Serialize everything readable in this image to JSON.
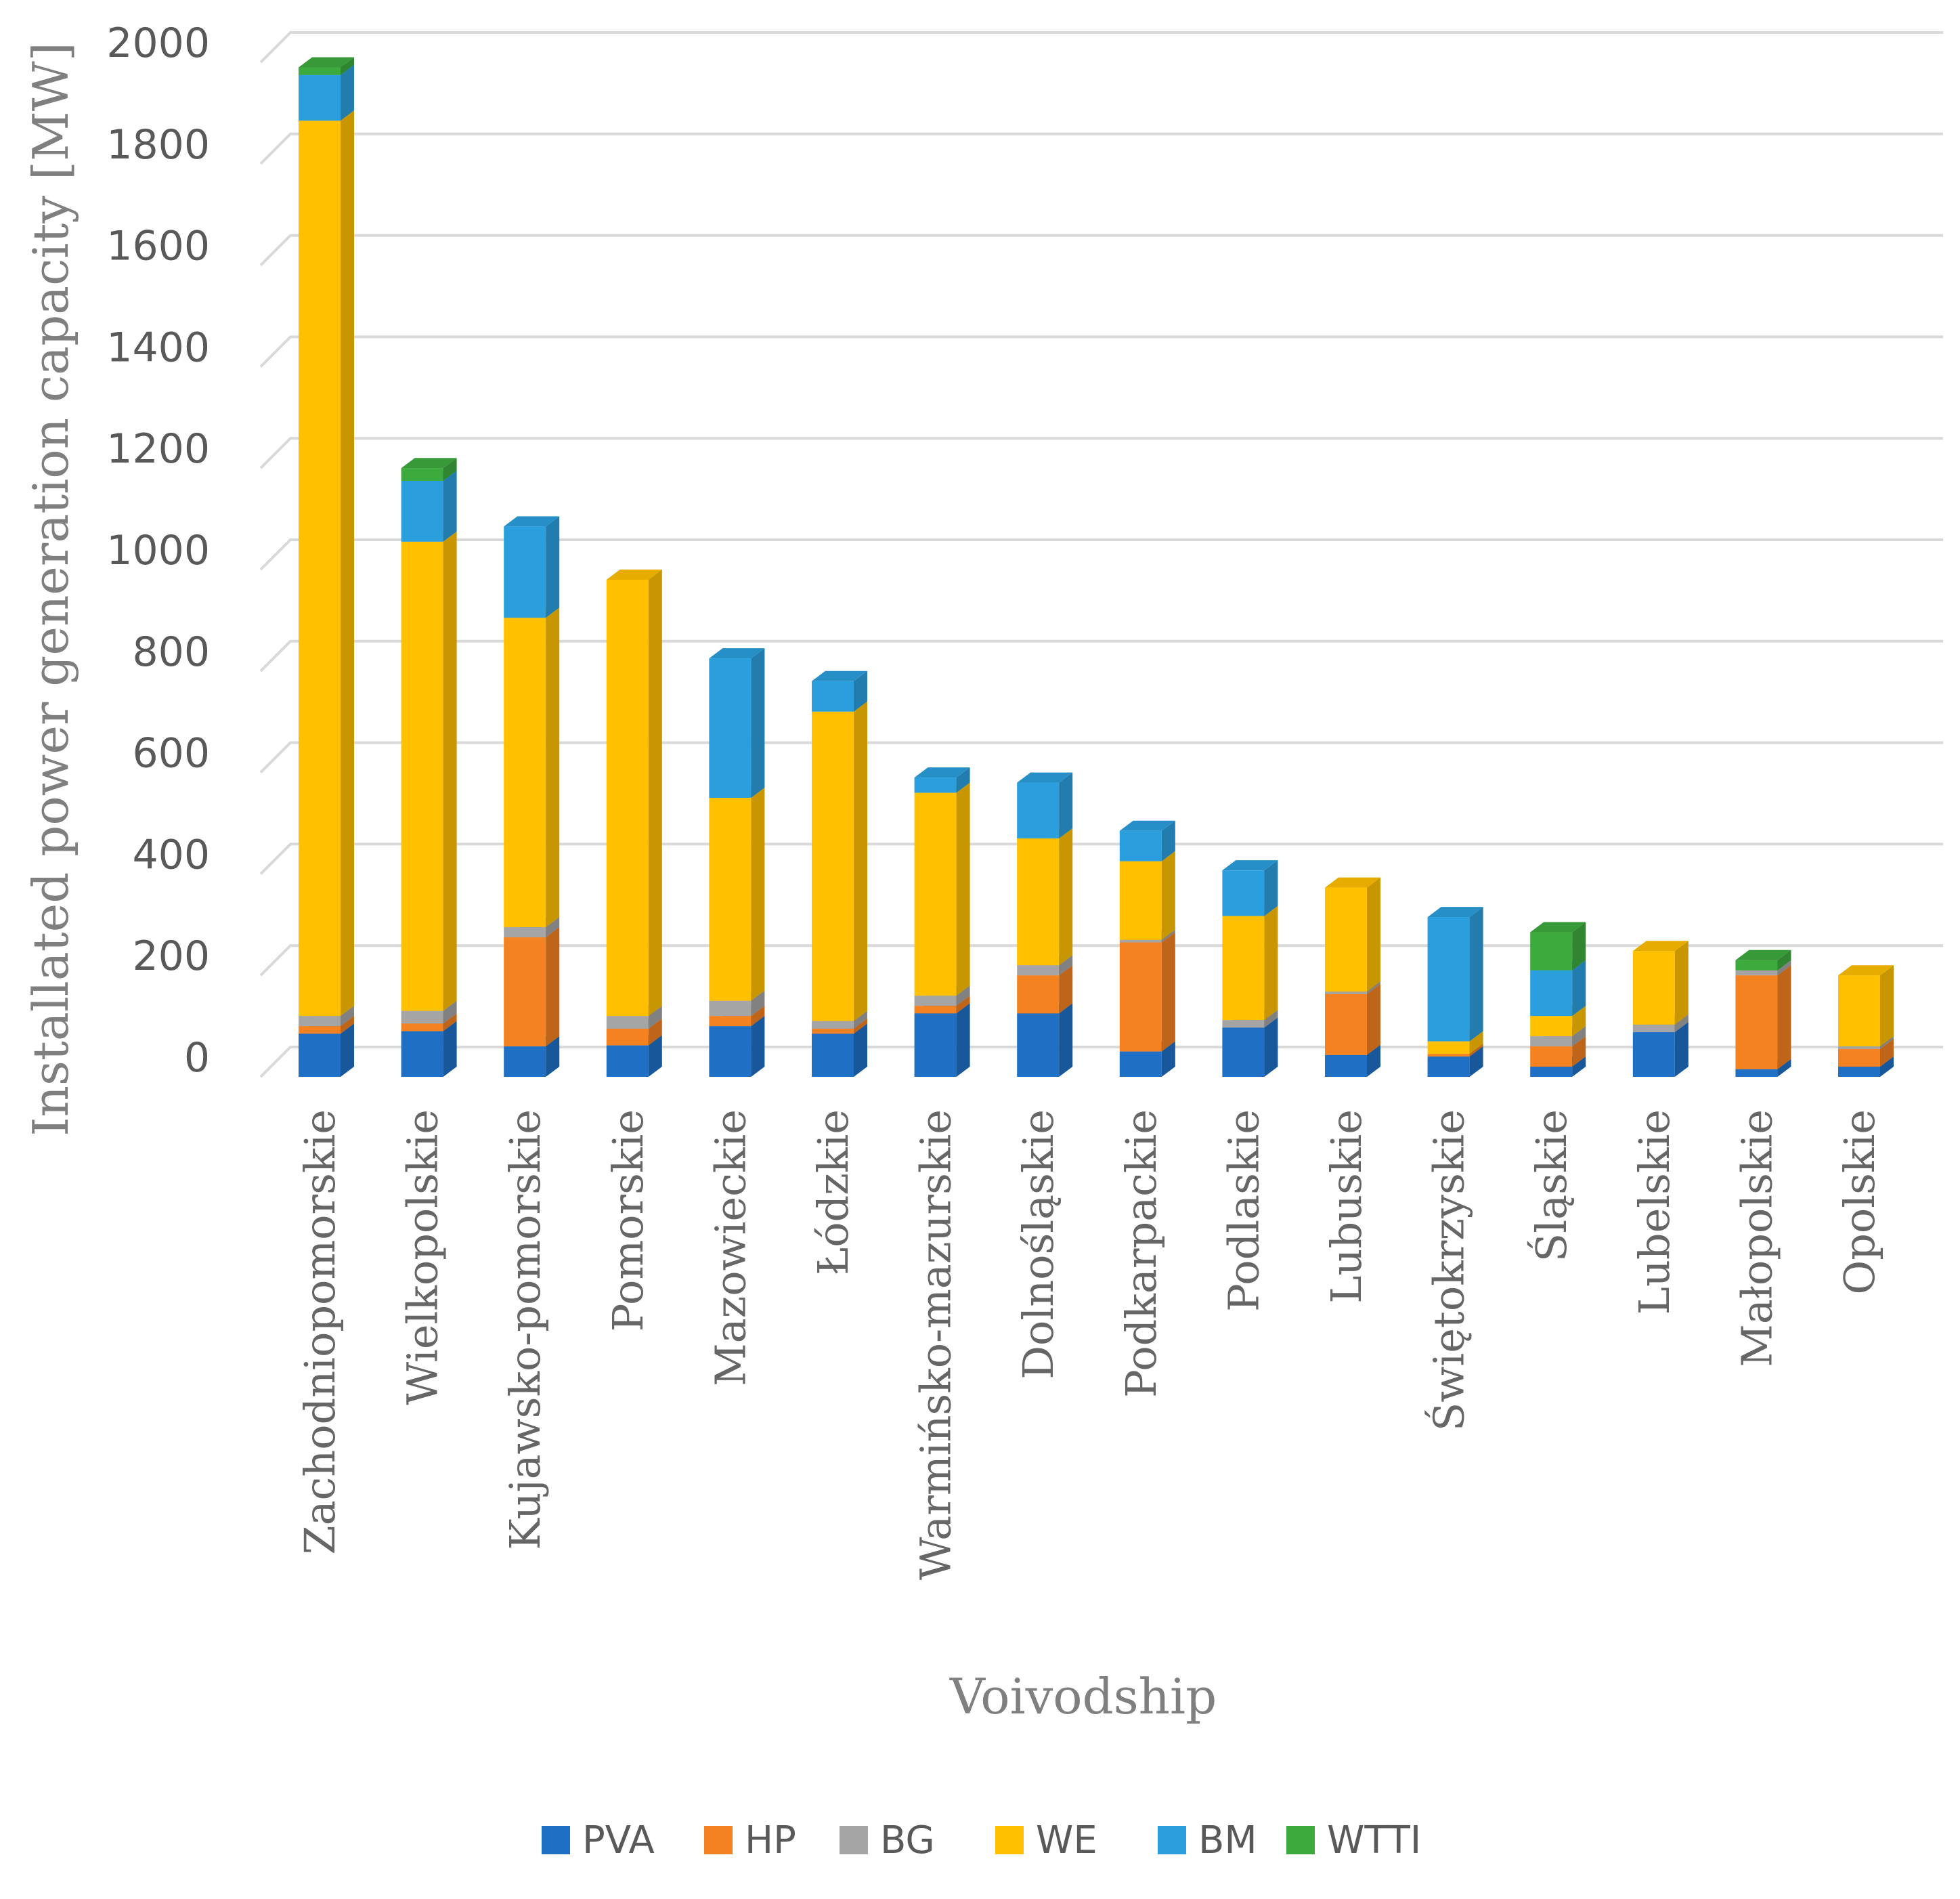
{
  "chart_data": {
    "type": "bar",
    "stacked": true,
    "style": "3d-column",
    "title": "",
    "xlabel": "Voivodship",
    "ylabel": "Installated power generation capacity [MW]",
    "ylim": [
      0,
      2000
    ],
    "yticks": [
      0,
      200,
      400,
      600,
      800,
      1000,
      1200,
      1400,
      1600,
      1800,
      2000
    ],
    "grid": true,
    "legend_position": "bottom",
    "categories": [
      "Zachodniopomorskie",
      "Wielkopolskie",
      "Kujawsko-pomorskie",
      "Pomorskie",
      "Mazowieckie",
      "Łódzkie",
      "Warmińsko-mazurskie",
      "Dolnośląskie",
      "Podkarpackie",
      "Podlaskie",
      "Lubuskie",
      "Świętokrzyskie",
      "Śląskie",
      "Lubelskie",
      "Małopolskie",
      "Opolskie"
    ],
    "series": [
      {
        "name": "PVA",
        "color": "#1f6fc5",
        "values": [
          85,
          90,
          60,
          62,
          100,
          85,
          125,
          125,
          50,
          97,
          43,
          40,
          20,
          88,
          15,
          20
        ]
      },
      {
        "name": "HP",
        "color": "#f58220",
        "values": [
          15,
          15,
          215,
          33,
          20,
          10,
          15,
          75,
          215,
          0,
          120,
          5,
          40,
          0,
          185,
          35
        ]
      },
      {
        "name": "BG",
        "color": "#a5a5a5",
        "values": [
          20,
          25,
          20,
          25,
          30,
          15,
          20,
          20,
          5,
          15,
          5,
          0,
          20,
          15,
          10,
          5
        ]
      },
      {
        "name": "WE",
        "color": "#ffc000",
        "values": [
          1765,
          925,
          610,
          860,
          400,
          610,
          400,
          250,
          155,
          205,
          205,
          25,
          40,
          145,
          0,
          140
        ]
      },
      {
        "name": "BM",
        "color": "#2b9fde",
        "values": [
          90,
          120,
          180,
          0,
          275,
          60,
          30,
          110,
          60,
          90,
          0,
          245,
          90,
          0,
          0,
          0
        ]
      },
      {
        "name": "WTTI",
        "color": "#3daa3d",
        "values": [
          15,
          25,
          0,
          0,
          0,
          0,
          0,
          0,
          0,
          0,
          0,
          0,
          75,
          0,
          20,
          0
        ]
      }
    ]
  }
}
